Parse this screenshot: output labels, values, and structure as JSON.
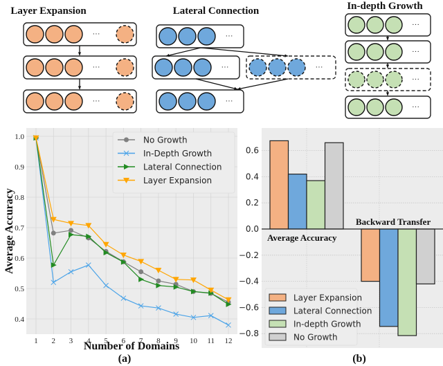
{
  "diagrams": [
    {
      "title": "Layer Expansion",
      "fill": "#f4b183",
      "rows": 3
    },
    {
      "title": "Lateral Connection",
      "fill": "#6fa8dc",
      "rows": 3
    },
    {
      "title": "In-depth Growth",
      "fill": "#c5e0b4",
      "rows": 4
    }
  ],
  "ellipsis": "···",
  "captions": {
    "a": "(a)",
    "b": "(b)"
  },
  "chart_data": [
    {
      "type": "line",
      "title": "",
      "xlabel": "Number of Domains",
      "ylabel": "Average Accuracy",
      "x": [
        1,
        2,
        3,
        4,
        5,
        6,
        7,
        8,
        9,
        10,
        11,
        12
      ],
      "xticks": [
        "1",
        "2",
        "3",
        "4",
        "5",
        "6",
        "7",
        "8",
        "9",
        "10",
        "11",
        "12"
      ],
      "yticks": [
        "0.4",
        "0.5",
        "0.6",
        "0.7",
        "0.8",
        "0.9",
        "1.0"
      ],
      "ytick_values": [
        0.4,
        0.5,
        0.6,
        0.7,
        0.8,
        0.9,
        1.0
      ],
      "ylim": [
        0.35,
        1.02
      ],
      "xlim": [
        0.4,
        12.5
      ],
      "grid": true,
      "legend_position": "top-right",
      "series": [
        {
          "name": "No Growth",
          "color": "#808080",
          "marker": "circle",
          "values": [
            0.995,
            0.682,
            0.691,
            0.666,
            0.622,
            0.588,
            0.555,
            0.525,
            0.514,
            0.49,
            0.484,
            0.455
          ]
        },
        {
          "name": "In-Depth Growth",
          "color": "#4aa3e8",
          "marker": "x",
          "values": [
            0.995,
            0.52,
            0.555,
            0.577,
            0.51,
            0.468,
            0.443,
            0.436,
            0.416,
            0.405,
            0.411,
            0.38
          ]
        },
        {
          "name": "Lateral Connection",
          "color": "#228b22",
          "marker": "triangle-right",
          "values": [
            0.995,
            0.577,
            0.677,
            0.671,
            0.618,
            0.587,
            0.53,
            0.51,
            0.505,
            0.49,
            0.485,
            0.448
          ]
        },
        {
          "name": "Layer Expansion",
          "color": "#ffa500",
          "marker": "triangle-down",
          "values": [
            0.995,
            0.727,
            0.714,
            0.707,
            0.645,
            0.61,
            0.589,
            0.56,
            0.53,
            0.528,
            0.495,
            0.463
          ]
        }
      ]
    },
    {
      "type": "bar",
      "title": "",
      "categories": [
        "Average Accuracy",
        "Backward Transfer"
      ],
      "yticks": [
        "−0.8",
        "−0.6",
        "−0.4",
        "−0.2",
        "0.0",
        "0.2",
        "0.4",
        "0.6"
      ],
      "ytick_values": [
        -0.8,
        -0.6,
        -0.4,
        -0.2,
        0.0,
        0.2,
        0.4,
        0.6
      ],
      "ylim": [
        -0.91,
        0.77
      ],
      "grid": true,
      "legend_position": "bottom-left",
      "series": [
        {
          "name": "Layer Expansion",
          "color": "#f4b183",
          "values": [
            0.675,
            -0.4
          ]
        },
        {
          "name": "Lateral Connection",
          "color": "#6fa8dc",
          "values": [
            0.42,
            -0.745
          ]
        },
        {
          "name": "In-depth Growth",
          "color": "#c5e0b4",
          "values": [
            0.37,
            -0.815
          ]
        },
        {
          "name": "No Growth",
          "color": "#d0d0d0",
          "values": [
            0.66,
            -0.42
          ]
        }
      ]
    }
  ]
}
